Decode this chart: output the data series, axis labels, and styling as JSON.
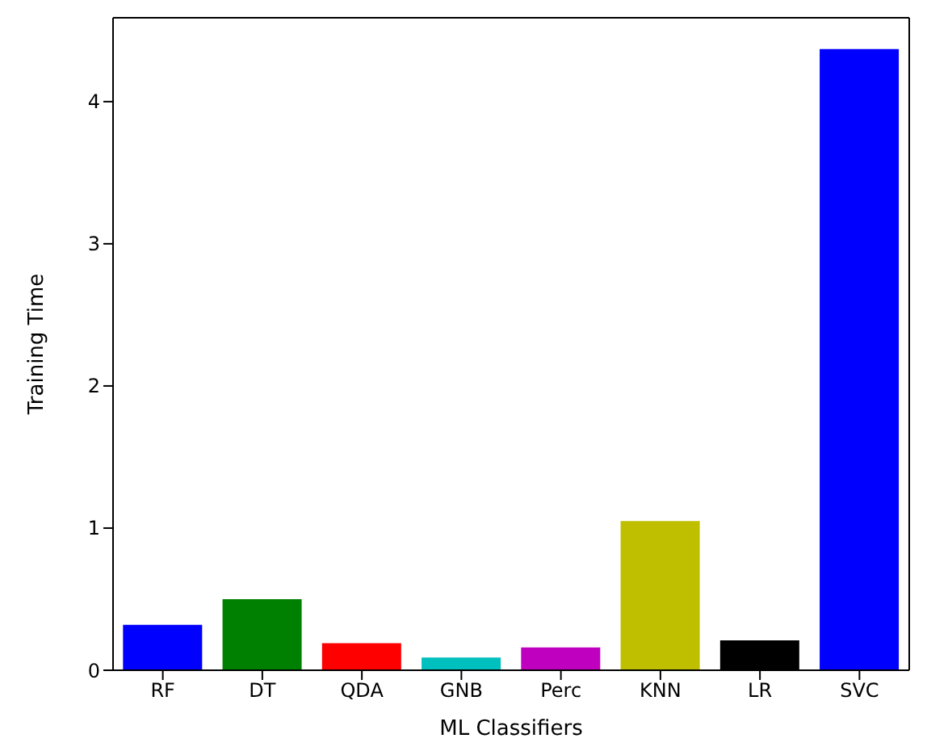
{
  "chart_data": {
    "type": "bar",
    "xlabel": "ML Classifiers",
    "ylabel": "Training Time",
    "categories": [
      "RF",
      "DT",
      "QDA",
      "GNB",
      "Perc",
      "KNN",
      "LR",
      "SVC"
    ],
    "values": [
      0.32,
      0.5,
      0.19,
      0.09,
      0.16,
      1.05,
      0.21,
      4.37
    ],
    "colors": [
      "#0000ff",
      "#008000",
      "#ff0000",
      "#00bfbf",
      "#bf00bf",
      "#bfbf00",
      "#000000",
      "#0000ff"
    ],
    "ylim": [
      0,
      4.59
    ],
    "yticks": [
      0,
      1,
      2,
      3,
      4
    ],
    "grid": false,
    "legend": false
  }
}
